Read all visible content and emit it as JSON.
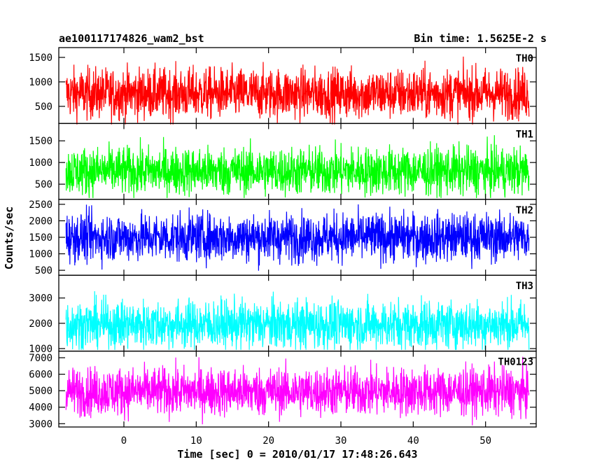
{
  "chart_data": {
    "type": "line",
    "title_left": "ae100117174826_wam2_bst",
    "title_right": "Bin time: 1.5625E-2 s",
    "xlabel": "Time [sec] 0 = 2010/01/17 17:48:26.643",
    "ylabel": "Counts/sec",
    "xlim": [
      -9,
      57
    ],
    "x_data_range": [
      -8,
      56
    ],
    "xticks": [
      0,
      10,
      20,
      30,
      40,
      50
    ],
    "panels": [
      {
        "name": "TH0",
        "color": "#ff0000",
        "ylim": [
          150,
          1700
        ],
        "yticks": [
          500,
          1000,
          1500
        ],
        "mean": 760,
        "range": [
          130,
          1680
        ]
      },
      {
        "name": "TH1",
        "color": "#00ff00",
        "ylim": [
          150,
          1900
        ],
        "yticks": [
          500,
          1000,
          1500
        ],
        "mean": 800,
        "range": [
          180,
          1850
        ]
      },
      {
        "name": "TH2",
        "color": "#0000ff",
        "ylim": [
          350,
          2650
        ],
        "yticks": [
          500,
          1000,
          1500,
          2000,
          2500
        ],
        "mean": 1500,
        "range": [
          420,
          2620
        ]
      },
      {
        "name": "TH3",
        "color": "#00ffff",
        "ylim": [
          900,
          3900
        ],
        "yticks": [
          1000,
          2000,
          3000
        ],
        "mean": 1950,
        "range": [
          950,
          3850
        ]
      },
      {
        "name": "TH0123",
        "color": "#ff00ff",
        "ylim": [
          2800,
          7400
        ],
        "yticks": [
          3000,
          4000,
          5000,
          6000,
          7000
        ],
        "mean": 4950,
        "range": [
          2900,
          7300
        ]
      }
    ]
  }
}
